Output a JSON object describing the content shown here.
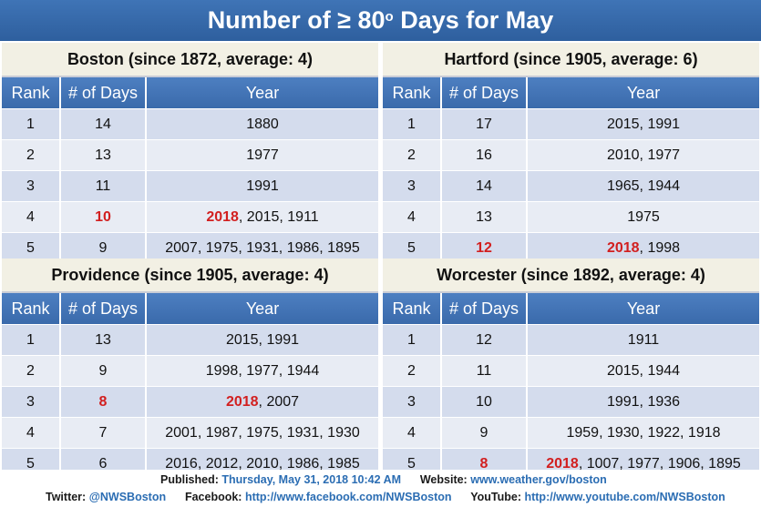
{
  "title": {
    "main": "Number of ≥ 80",
    "sup": "o",
    "rest": " Days for May"
  },
  "columns": {
    "rank": "Rank",
    "days": "# of Days",
    "year": "Year"
  },
  "panels": [
    {
      "header": "Boston (since 1872, average: 4)",
      "rows": [
        {
          "rank": "1",
          "days": "14",
          "days_highlight": false,
          "year_hl": "",
          "year_rest": "1880"
        },
        {
          "rank": "2",
          "days": "13",
          "days_highlight": false,
          "year_hl": "",
          "year_rest": "1977"
        },
        {
          "rank": "3",
          "days": "11",
          "days_highlight": false,
          "year_hl": "",
          "year_rest": "1991"
        },
        {
          "rank": "4",
          "days": "10",
          "days_highlight": true,
          "year_hl": "2018",
          "year_rest": ", 2015, 1911"
        },
        {
          "rank": "5",
          "days": "9",
          "days_highlight": false,
          "year_hl": "",
          "year_rest": "2007, 1975, 1931, 1986, 1895"
        }
      ]
    },
    {
      "header": "Hartford (since 1905, average: 6)",
      "rows": [
        {
          "rank": "1",
          "days": "17",
          "days_highlight": false,
          "year_hl": "",
          "year_rest": "2015, 1991"
        },
        {
          "rank": "2",
          "days": "16",
          "days_highlight": false,
          "year_hl": "",
          "year_rest": "2010, 1977"
        },
        {
          "rank": "3",
          "days": "14",
          "days_highlight": false,
          "year_hl": "",
          "year_rest": "1965, 1944"
        },
        {
          "rank": "4",
          "days": "13",
          "days_highlight": false,
          "year_hl": "",
          "year_rest": "1975"
        },
        {
          "rank": "5",
          "days": "12",
          "days_highlight": true,
          "year_hl": "2018",
          "year_rest": ", 1998"
        }
      ]
    },
    {
      "header": "Providence (since 1905, average: 4)",
      "rows": [
        {
          "rank": "1",
          "days": "13",
          "days_highlight": false,
          "year_hl": "",
          "year_rest": "2015, 1991"
        },
        {
          "rank": "2",
          "days": "9",
          "days_highlight": false,
          "year_hl": "",
          "year_rest": "1998, 1977, 1944"
        },
        {
          "rank": "3",
          "days": "8",
          "days_highlight": true,
          "year_hl": "2018",
          "year_rest": ", 2007"
        },
        {
          "rank": "4",
          "days": "7",
          "days_highlight": false,
          "year_hl": "",
          "year_rest": "2001, 1987, 1975, 1931, 1930"
        },
        {
          "rank": "5",
          "days": "6",
          "days_highlight": false,
          "year_hl": "",
          "year_rest": "2016, 2012, 2010, 1986, 1985"
        }
      ]
    },
    {
      "header": "Worcester (since 1892, average: 4)",
      "rows": [
        {
          "rank": "1",
          "days": "12",
          "days_highlight": false,
          "year_hl": "",
          "year_rest": "1911"
        },
        {
          "rank": "2",
          "days": "11",
          "days_highlight": false,
          "year_hl": "",
          "year_rest": "2015, 1944"
        },
        {
          "rank": "3",
          "days": "10",
          "days_highlight": false,
          "year_hl": "",
          "year_rest": "1991, 1936"
        },
        {
          "rank": "4",
          "days": "9",
          "days_highlight": false,
          "year_hl": "",
          "year_rest": "1959, 1930, 1922, 1918"
        },
        {
          "rank": "5",
          "days": "8",
          "days_highlight": true,
          "year_hl": "2018",
          "year_rest": ", 1007, 1977, 1906, 1895"
        }
      ]
    }
  ],
  "footer": {
    "published_label": "Published:",
    "published_value": "Thursday, May 31, 2018 10:42 AM",
    "website_label": "Website:",
    "website_value": "www.weather.gov/boston",
    "twitter_label": "Twitter:",
    "twitter_value": "@NWSBoston",
    "facebook_label": "Facebook:",
    "facebook_value": "http://www.facebook.com/NWSBoston",
    "youtube_label": "YouTube:",
    "youtube_value": "http://www.youtube.com/NWSBoston"
  },
  "logos": {
    "left": "noaa-logo",
    "right": "nws-logo"
  },
  "colors": {
    "title_bg": "#3a6aab",
    "header_bg": "#f2f0e4",
    "highlight": "#d21f1f",
    "link": "#2b6db3"
  }
}
